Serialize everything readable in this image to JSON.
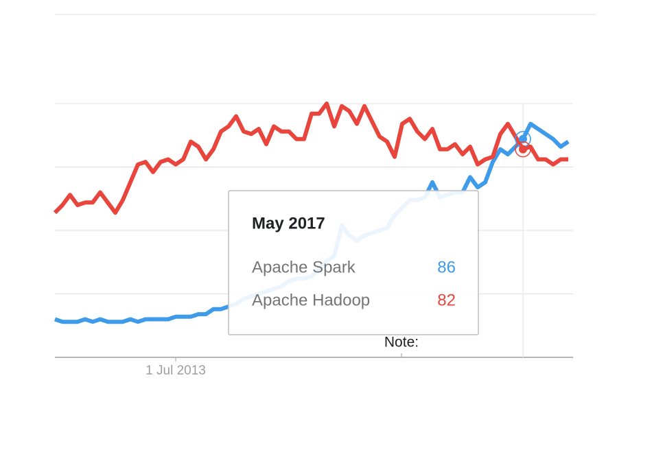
{
  "chart_data": {
    "type": "line",
    "categories": [
      null,
      null,
      null,
      null,
      null,
      null,
      null,
      null,
      null,
      null,
      null,
      null,
      null,
      null,
      null,
      null,
      "1 Jul 2013",
      null,
      null,
      null,
      null,
      null,
      null,
      null,
      null,
      null,
      null,
      null,
      null,
      null,
      null,
      null,
      null,
      null,
      null,
      null,
      null,
      null,
      null,
      null,
      null,
      null,
      null,
      null,
      null,
      null,
      null,
      null,
      null,
      null,
      null,
      null,
      null,
      null,
      null,
      null,
      null,
      null,
      null,
      null,
      null,
      null,
      "May 2017",
      null,
      null,
      null,
      null,
      null,
      null
    ],
    "series": [
      {
        "name": "Apache Spark",
        "color": "#3d9be9",
        "values": [
          15,
          14,
          14,
          14,
          15,
          14,
          15,
          14,
          14,
          14,
          15,
          14,
          15,
          15,
          15,
          15,
          16,
          16,
          16,
          17,
          17,
          19,
          19,
          20,
          21,
          23,
          24,
          25,
          26,
          27,
          28,
          30,
          31,
          31,
          32,
          35,
          38,
          40,
          52,
          48,
          46,
          48,
          49,
          50,
          51,
          56,
          59,
          62,
          62,
          63,
          69,
          63,
          64,
          65,
          65,
          71,
          67,
          69,
          77,
          82,
          80,
          83,
          86,
          92,
          90,
          88,
          86,
          83,
          85
        ]
      },
      {
        "name": "Apache Hadoop",
        "color": "#e8453c",
        "values": [
          57,
          60,
          64,
          60,
          61,
          61,
          65,
          61,
          57,
          62,
          69,
          76,
          77,
          73,
          77,
          78,
          76,
          78,
          85,
          83,
          78,
          82,
          89,
          91,
          95,
          89,
          88,
          90,
          84,
          91,
          89,
          89,
          86,
          86,
          96,
          96,
          100,
          91,
          99,
          97,
          92,
          99,
          93,
          87,
          85,
          79,
          92,
          94,
          89,
          86,
          90,
          82,
          82,
          84,
          80,
          83,
          76,
          78,
          79,
          88,
          92,
          87,
          82,
          83,
          78,
          78,
          76,
          78,
          78
        ]
      }
    ],
    "ylim": [
      0,
      100
    ],
    "yticks": [
      0,
      25,
      50,
      75,
      100
    ],
    "grid": true,
    "annotation": "Note:",
    "hover_index": 62
  }
}
